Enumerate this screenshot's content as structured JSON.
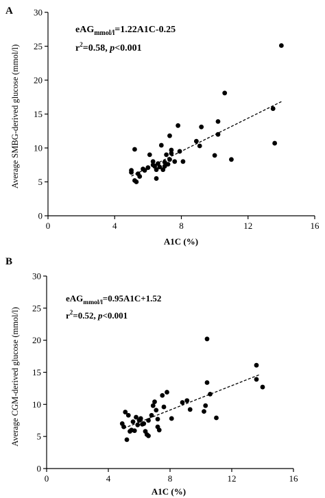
{
  "chart_data": [
    {
      "panel": "A",
      "type": "scatter",
      "xlabel": "A1C (%)",
      "ylabel": "Average SMBG-derived glucose (mmol/l)",
      "xlim": [
        0,
        16
      ],
      "ylim": [
        0,
        30
      ],
      "xticks": [
        0,
        4,
        8,
        12,
        16
      ],
      "yticks": [
        0,
        5,
        10,
        15,
        20,
        25,
        30
      ],
      "xtick_labels": [
        "0",
        "4",
        "8",
        "12",
        "16"
      ],
      "ytick_labels": [
        "0",
        "5",
        "10",
        "15",
        "20",
        "25",
        "30"
      ],
      "grid": false,
      "legend": "none",
      "annotation": {
        "line1_prefix": "eAG",
        "line1_sub": "mmol/l",
        "line1_rest": "=1.22A1C-0.25",
        "line2_r": "r",
        "line2_sup": "2",
        "line2_mid": "=0.58, ",
        "line2_p": "p",
        "line2_rest": "<0.001"
      },
      "fit": {
        "slope": 1.22,
        "intercept": -0.25,
        "x_range": [
          5.0,
          14.0
        ]
      },
      "points": [
        [
          5.0,
          6.7
        ],
        [
          5.0,
          6.4
        ],
        [
          5.2,
          9.8
        ],
        [
          5.2,
          5.2
        ],
        [
          5.3,
          5.0
        ],
        [
          5.4,
          6.2
        ],
        [
          5.5,
          5.8
        ],
        [
          5.7,
          6.9
        ],
        [
          5.8,
          6.7
        ],
        [
          6.0,
          7.1
        ],
        [
          6.1,
          9.0
        ],
        [
          6.3,
          7.5
        ],
        [
          6.3,
          8.0
        ],
        [
          6.4,
          7.3
        ],
        [
          6.5,
          6.8
        ],
        [
          6.5,
          5.5
        ],
        [
          6.6,
          7.7
        ],
        [
          6.7,
          7.2
        ],
        [
          6.8,
          10.4
        ],
        [
          6.9,
          6.8
        ],
        [
          7.0,
          7.3
        ],
        [
          7.0,
          7.9
        ],
        [
          7.1,
          9.0
        ],
        [
          7.2,
          7.6
        ],
        [
          7.3,
          8.3
        ],
        [
          7.3,
          11.8
        ],
        [
          7.4,
          9.2
        ],
        [
          7.4,
          9.7
        ],
        [
          7.6,
          8.0
        ],
        [
          7.8,
          13.3
        ],
        [
          7.9,
          9.5
        ],
        [
          8.1,
          8.0
        ],
        [
          8.9,
          11.0
        ],
        [
          9.1,
          10.3
        ],
        [
          9.2,
          13.1
        ],
        [
          10.0,
          8.9
        ],
        [
          10.2,
          13.9
        ],
        [
          10.2,
          12.0
        ],
        [
          10.6,
          18.1
        ],
        [
          11.0,
          8.3
        ],
        [
          13.5,
          15.8
        ],
        [
          13.6,
          10.7
        ],
        [
          14.0,
          25.1
        ]
      ]
    },
    {
      "panel": "B",
      "type": "scatter",
      "xlabel": "A1C (%)",
      "ylabel": "Average CGM-derived glucose (mmol/l)",
      "xlim": [
        0,
        16
      ],
      "ylim": [
        0,
        30
      ],
      "xticks": [
        0,
        4,
        8,
        12,
        16
      ],
      "yticks": [
        0,
        5,
        10,
        15,
        20,
        25,
        30
      ],
      "xtick_labels": [
        "0",
        "4",
        "8",
        "12",
        "16"
      ],
      "ytick_labels": [
        "0",
        "5",
        "10",
        "15",
        "20",
        "25",
        "30"
      ],
      "grid": false,
      "legend": "none",
      "annotation": {
        "line1_prefix": "eAG",
        "line1_sub": "mmol/l",
        "line1_rest": "=0.95A1C+1.52",
        "line2_r": "r",
        "line2_sup": "2",
        "line2_mid": "=0.52, ",
        "line2_p": "p",
        "line2_rest": "<0.001"
      },
      "fit": {
        "slope": 0.95,
        "intercept": 1.52,
        "x_range": [
          5.0,
          13.8
        ]
      },
      "points": [
        [
          4.9,
          7.0
        ],
        [
          5.0,
          6.5
        ],
        [
          5.1,
          8.8
        ],
        [
          5.2,
          4.5
        ],
        [
          5.3,
          8.3
        ],
        [
          5.4,
          5.8
        ],
        [
          5.5,
          6.0
        ],
        [
          5.6,
          7.3
        ],
        [
          5.7,
          5.9
        ],
        [
          5.8,
          8.0
        ],
        [
          5.9,
          6.8
        ],
        [
          6.0,
          7.5
        ],
        [
          6.1,
          7.8
        ],
        [
          6.2,
          6.9
        ],
        [
          6.3,
          7.0
        ],
        [
          6.4,
          5.8
        ],
        [
          6.5,
          5.3
        ],
        [
          6.6,
          5.1
        ],
        [
          6.6,
          7.5
        ],
        [
          6.8,
          8.3
        ],
        [
          6.9,
          9.8
        ],
        [
          7.0,
          10.4
        ],
        [
          7.1,
          9.1
        ],
        [
          7.2,
          7.7
        ],
        [
          7.2,
          6.5
        ],
        [
          7.3,
          6.0
        ],
        [
          7.5,
          11.4
        ],
        [
          7.6,
          9.6
        ],
        [
          7.8,
          11.9
        ],
        [
          8.1,
          7.8
        ],
        [
          8.8,
          10.3
        ],
        [
          9.1,
          10.6
        ],
        [
          9.3,
          9.2
        ],
        [
          10.2,
          8.9
        ],
        [
          10.3,
          9.8
        ],
        [
          10.4,
          20.2
        ],
        [
          10.4,
          13.4
        ],
        [
          10.6,
          11.6
        ],
        [
          11.0,
          7.9
        ],
        [
          13.6,
          16.1
        ],
        [
          13.6,
          13.9
        ],
        [
          14.0,
          12.7
        ]
      ]
    }
  ]
}
